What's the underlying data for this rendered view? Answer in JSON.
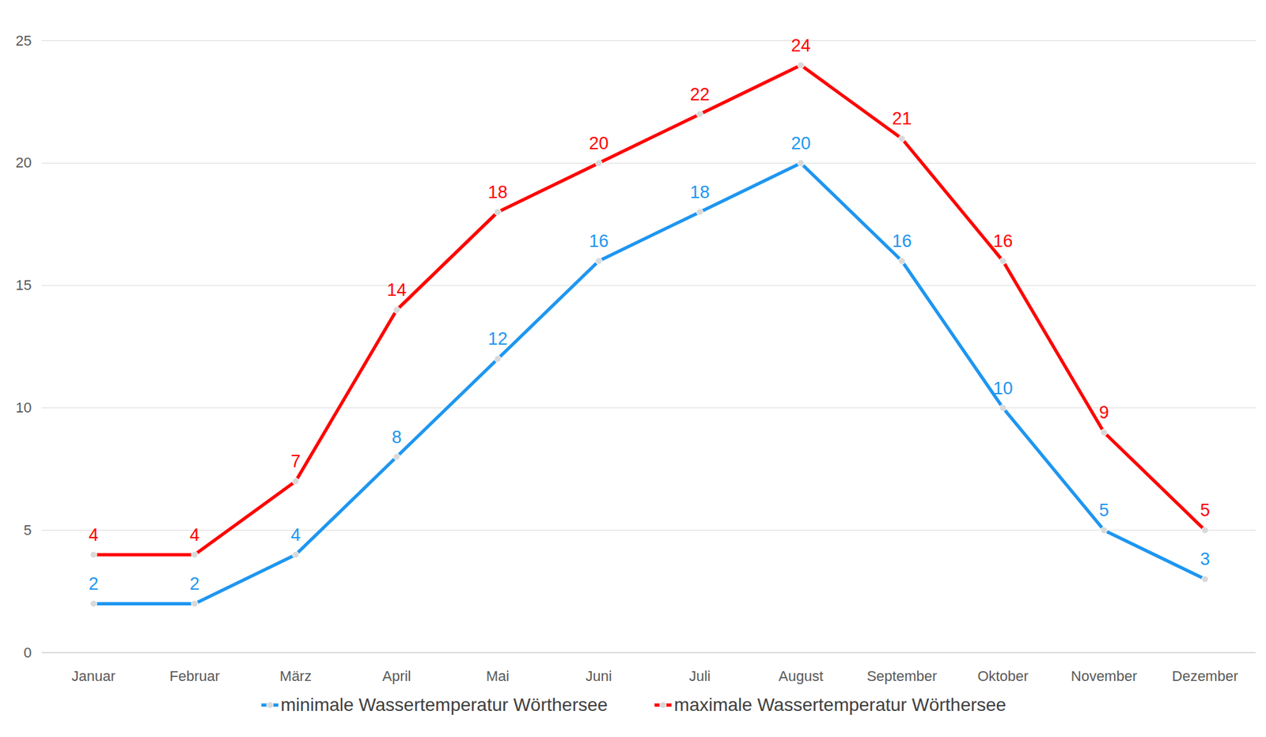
{
  "chart_data": {
    "type": "line",
    "categories": [
      "Januar",
      "Februar",
      "März",
      "April",
      "Mai",
      "Juni",
      "Juli",
      "August",
      "September",
      "Oktober",
      "November",
      "Dezember"
    ],
    "series": [
      {
        "name": "minimale Wassertemperatur Wörthersee",
        "color": "#1E96F0",
        "values": [
          2,
          2,
          4,
          8,
          12,
          16,
          18,
          20,
          16,
          10,
          5,
          3
        ]
      },
      {
        "name": "maximale Wassertemperatur Wörthersee",
        "color": "#FF0000",
        "values": [
          4,
          4,
          7,
          14,
          18,
          20,
          22,
          24,
          21,
          16,
          9,
          5
        ]
      }
    ],
    "ylim": [
      0,
      25
    ],
    "yticks": [
      0,
      5,
      10,
      15,
      20,
      25
    ],
    "grid": true,
    "legend": "bottom",
    "data_labels": true,
    "marker": "circle"
  }
}
